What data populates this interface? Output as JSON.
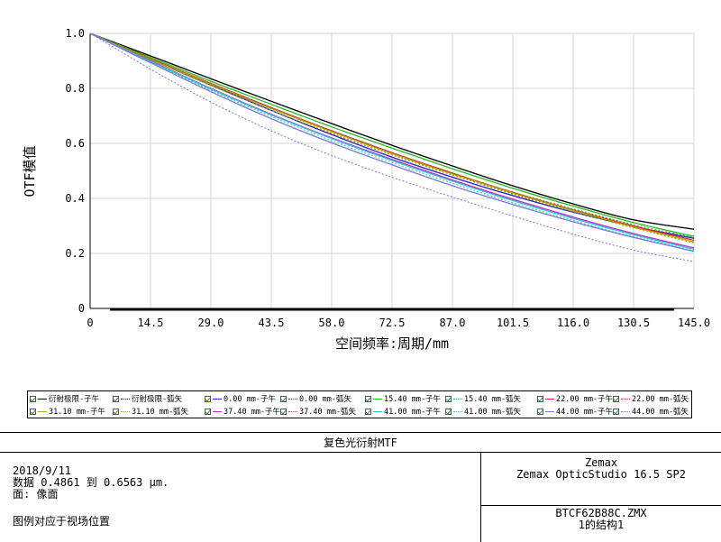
{
  "chart_data": {
    "type": "line",
    "ylabel": "OTF模值",
    "xlabel": "空间频率:周期/mm",
    "xlim": [
      0,
      145
    ],
    "ylim": [
      0,
      1.0
    ],
    "x_ticks": [
      "0",
      "14.5",
      "29.0",
      "43.5",
      "58.0",
      "72.5",
      "87.0",
      "101.5",
      "116.0",
      "130.5",
      "145.0"
    ],
    "y_ticks": [
      "0",
      "0.2",
      "0.4",
      "0.6",
      "0.8",
      "1.0"
    ],
    "grid": true,
    "x": [
      0,
      14.5,
      29.0,
      43.5,
      58.0,
      72.5,
      87.0,
      101.5,
      116.0,
      130.5,
      145.0
    ],
    "series": [
      {
        "name": "衍射极限-子午",
        "color": "#000000",
        "dash": false,
        "values": [
          1.0,
          0.918,
          0.835,
          0.753,
          0.672,
          0.593,
          0.518,
          0.446,
          0.38,
          0.322,
          0.288
        ]
      },
      {
        "name": "衍射极限-弧矢",
        "color": "#000000",
        "dash": true,
        "values": [
          1.0,
          0.918,
          0.835,
          0.753,
          0.672,
          0.593,
          0.518,
          0.446,
          0.38,
          0.322,
          0.288
        ]
      },
      {
        "name": "0.00 mm-子午",
        "color": "#2222cc",
        "dash": false,
        "values": [
          1.0,
          0.905,
          0.812,
          0.72,
          0.632,
          0.55,
          0.477,
          0.41,
          0.35,
          0.298,
          0.255
        ]
      },
      {
        "name": "0.00 mm-弧矢",
        "color": "#2222cc",
        "dash": true,
        "values": [
          1.0,
          0.905,
          0.812,
          0.72,
          0.632,
          0.55,
          0.477,
          0.41,
          0.35,
          0.298,
          0.255
        ]
      },
      {
        "name": "15.40 mm-子午",
        "color": "#22bb22",
        "dash": false,
        "values": [
          1.0,
          0.912,
          0.826,
          0.742,
          0.66,
          0.583,
          0.508,
          0.437,
          0.372,
          0.312,
          0.262
        ]
      },
      {
        "name": "15.40 mm-弧矢",
        "color": "#22bb22",
        "dash": true,
        "values": [
          1.0,
          0.905,
          0.814,
          0.726,
          0.642,
          0.563,
          0.49,
          0.423,
          0.362,
          0.305,
          0.258
        ]
      },
      {
        "name": "22.00 mm-子午",
        "color": "#dd2222",
        "dash": false,
        "values": [
          1.0,
          0.908,
          0.818,
          0.73,
          0.646,
          0.566,
          0.492,
          0.422,
          0.358,
          0.3,
          0.248
        ]
      },
      {
        "name": "22.00 mm-弧矢",
        "color": "#dd2222",
        "dash": true,
        "values": [
          1.0,
          0.904,
          0.81,
          0.72,
          0.636,
          0.558,
          0.485,
          0.418,
          0.355,
          0.298,
          0.248
        ]
      },
      {
        "name": "31.10 mm-子午",
        "color": "#aaaa00",
        "dash": false,
        "values": [
          1.0,
          0.906,
          0.815,
          0.727,
          0.643,
          0.563,
          0.489,
          0.42,
          0.356,
          0.296,
          0.242
        ]
      },
      {
        "name": "31.10 mm-弧矢",
        "color": "#aaaa00",
        "dash": true,
        "values": [
          1.0,
          0.904,
          0.81,
          0.72,
          0.637,
          0.558,
          0.485,
          0.415,
          0.352,
          0.292,
          0.238
        ]
      },
      {
        "name": "37.40 mm-子午",
        "color": "#cc22cc",
        "dash": false,
        "values": [
          1.0,
          0.9,
          0.8,
          0.706,
          0.62,
          0.542,
          0.467,
          0.397,
          0.332,
          0.272,
          0.22
        ]
      },
      {
        "name": "37.40 mm-弧矢",
        "color": "#cc22cc",
        "dash": true,
        "values": [
          1.0,
          0.898,
          0.797,
          0.703,
          0.617,
          0.537,
          0.463,
          0.393,
          0.328,
          0.268,
          0.215
        ]
      },
      {
        "name": "41.00 mm-子午",
        "color": "#22cccc",
        "dash": false,
        "values": [
          1.0,
          0.898,
          0.798,
          0.704,
          0.618,
          0.538,
          0.463,
          0.392,
          0.327,
          0.268,
          0.215
        ]
      },
      {
        "name": "41.00 mm-弧矢",
        "color": "#22cccc",
        "dash": true,
        "values": [
          1.0,
          0.896,
          0.793,
          0.698,
          0.61,
          0.53,
          0.455,
          0.384,
          0.32,
          0.262,
          0.21
        ]
      },
      {
        "name": "44.00 mm-子午",
        "color": "#7777dd",
        "dash": false,
        "values": [
          1.0,
          0.893,
          0.788,
          0.69,
          0.602,
          0.522,
          0.446,
          0.378,
          0.315,
          0.258,
          0.208
        ]
      },
      {
        "name": "44.00 mm-弧矢",
        "color": "#7777dd",
        "dash": true,
        "values": [
          1.0,
          0.87,
          0.75,
          0.646,
          0.556,
          0.477,
          0.405,
          0.336,
          0.27,
          0.212,
          0.17
        ]
      }
    ]
  },
  "footer": {
    "title": "复色光衍射MTF",
    "date": "2018/9/11",
    "data_range": "数据 0.4861 到 0.6563 μm.",
    "surface": "面: 像面",
    "legend_note": "图例对应于视场位置",
    "software_company": "Zemax",
    "software_version": "Zemax OpticStudio 16.5 SP2",
    "file_name": "BTCF62B88C.ZMX",
    "config": "1的结构1"
  }
}
